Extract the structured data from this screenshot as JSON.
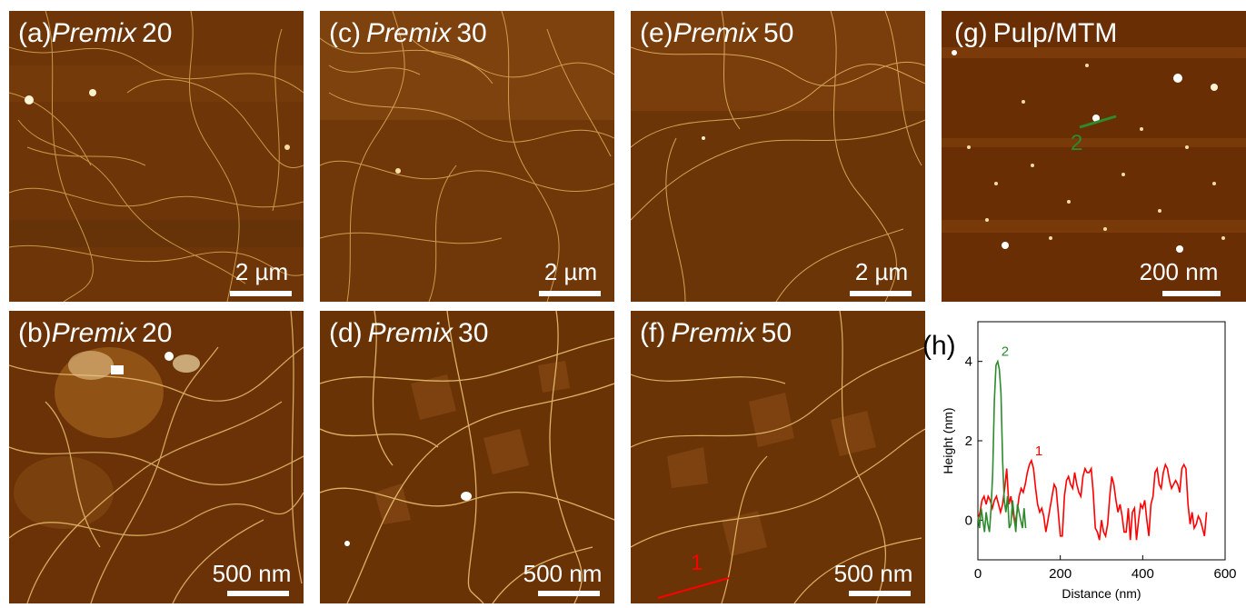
{
  "panels": [
    {
      "id": "a",
      "letter": "(a)",
      "word": "Premix",
      "num": "20",
      "scale": "2 µm"
    },
    {
      "id": "b",
      "letter": "(b)",
      "word": "Premix",
      "num": "20",
      "scale": "500 nm"
    },
    {
      "id": "c",
      "letter": "(c)",
      "word": "Premix",
      "num": "30",
      "scale": "2 µm"
    },
    {
      "id": "d",
      "letter": "(d)",
      "word": "Premix",
      "num": "30",
      "scale": "500 nm"
    },
    {
      "id": "e",
      "letter": "(e)",
      "word": "Premix",
      "num": "50",
      "scale": "2 µm"
    },
    {
      "id": "f",
      "letter": "(f)",
      "word": "Premix",
      "num": "50",
      "scale": "500 nm",
      "marker": "1"
    },
    {
      "id": "g",
      "letter": "(g)",
      "word": "",
      "num": "Pulp/MTM",
      "scale": "200 nm",
      "marker": "2"
    }
  ],
  "chart_label": "(h)",
  "chart_data": {
    "type": "line",
    "xlabel": "Distance (nm)",
    "ylabel": "Height (nm)",
    "xlim": [
      0,
      600
    ],
    "ylim": [
      -1,
      5
    ],
    "xticks": [
      0,
      200,
      400,
      600
    ],
    "yticks": [
      0,
      2,
      4
    ],
    "series": [
      {
        "name": "1",
        "color": "#ff0000",
        "x": [
          0,
          5,
          10,
          15,
          20,
          25,
          30,
          35,
          40,
          45,
          50,
          55,
          60,
          65,
          70,
          75,
          80,
          85,
          90,
          95,
          100,
          105,
          110,
          115,
          120,
          125,
          130,
          135,
          140,
          145,
          150,
          155,
          160,
          165,
          170,
          175,
          180,
          185,
          190,
          195,
          200,
          205,
          210,
          215,
          220,
          225,
          230,
          235,
          240,
          245,
          250,
          255,
          260,
          265,
          270,
          275,
          280,
          285,
          290,
          295,
          300,
          305,
          310,
          315,
          320,
          325,
          330,
          335,
          340,
          345,
          350,
          355,
          360,
          365,
          370,
          375,
          380,
          385,
          390,
          395,
          400,
          405,
          410,
          415,
          420,
          425,
          430,
          435,
          440,
          445,
          450,
          455,
          460,
          465,
          470,
          475,
          480,
          485,
          490,
          495,
          500,
          505,
          510,
          515,
          520,
          525,
          530,
          535,
          540,
          545,
          550,
          555
        ],
        "y": [
          0.0,
          0.2,
          0.5,
          0.6,
          0.4,
          0.6,
          0.5,
          0.3,
          0.5,
          0.6,
          0.4,
          0.2,
          0.4,
          0.8,
          1.3,
          0.4,
          0.6,
          0.2,
          -0.1,
          0.2,
          0.6,
          0.8,
          0.7,
          0.9,
          1.2,
          1.4,
          1.5,
          1.3,
          0.8,
          0.4,
          0.2,
          0.3,
          0.1,
          -0.3,
          0.0,
          0.3,
          0.6,
          0.9,
          0.8,
          0.2,
          -0.4,
          -0.4,
          0.6,
          1.0,
          1.1,
          0.9,
          0.8,
          1.2,
          0.9,
          0.7,
          0.6,
          1.1,
          1.3,
          1.2,
          1.2,
          1.3,
          0.7,
          -0.2,
          -0.3,
          -0.5,
          0.0,
          -0.3,
          -0.4,
          -0.1,
          0.6,
          1.1,
          0.9,
          0.5,
          0.2,
          0.4,
          0.1,
          -0.3,
          -0.3,
          0.3,
          -0.5,
          0.2,
          0.3,
          -0.5,
          0.0,
          0.4,
          0.3,
          0.5,
          0.0,
          -0.4,
          0.4,
          0.6,
          1.2,
          1.3,
          0.9,
          0.8,
          1.2,
          1.4,
          1.3,
          1.0,
          0.8,
          0.9,
          1.0,
          0.9,
          0.7,
          1.3,
          1.4,
          1.3,
          0.4,
          -0.1,
          0.2,
          -0.2,
          -0.1,
          0.1,
          0.0,
          -0.2,
          -0.4,
          0.2
        ]
      },
      {
        "name": "2",
        "color": "#2d8a2d",
        "x": [
          0,
          4,
          8,
          12,
          16,
          20,
          24,
          28,
          32,
          36,
          40,
          44,
          48,
          52,
          56,
          60,
          64,
          68,
          72,
          76,
          80,
          84,
          88,
          92,
          96,
          100,
          104,
          108,
          112,
          116
        ],
        "y": [
          0.1,
          -0.2,
          0.3,
          0.0,
          -0.3,
          0.2,
          -0.1,
          -0.3,
          0.3,
          1.2,
          3.0,
          3.9,
          4.0,
          3.8,
          3.2,
          1.5,
          0.5,
          0.2,
          0.6,
          -0.2,
          -0.1,
          0.5,
          0.1,
          -0.3,
          0.4,
          0.2,
          0.0,
          -0.2,
          0.3,
          -0.2
        ]
      }
    ]
  }
}
